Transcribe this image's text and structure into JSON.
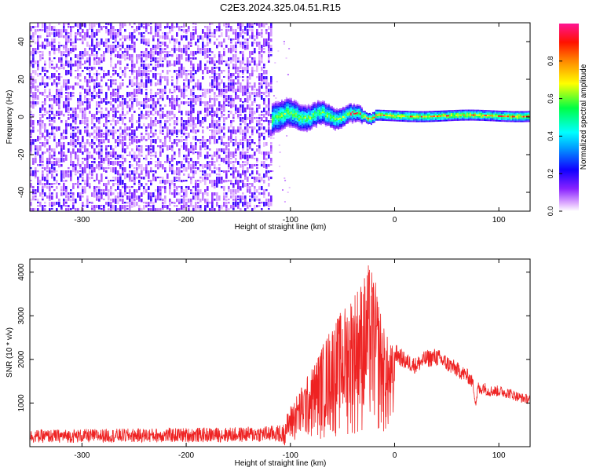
{
  "title": "C2E3.2024.325.04.51.R15",
  "colors": {
    "snr_line": "#ee2222",
    "colormap": [
      "#ffffff",
      "#b14cff",
      "#2200ff",
      "#00ffff",
      "#00ff00",
      "#ffff00",
      "#ff8800",
      "#ff0000",
      "#ff1493"
    ]
  },
  "chart_data": [
    {
      "type": "heatmap",
      "title": "",
      "xlabel": "Height of straight line (km)",
      "ylabel": "Frequency (Hz)",
      "xlim": [
        -350,
        130
      ],
      "ylim": [
        -50,
        50
      ],
      "xticks": [
        -300,
        -200,
        -100,
        0,
        100
      ],
      "yticks": [
        -40,
        -20,
        0,
        20,
        40
      ],
      "features": [
        {
          "x_range": [
            -350,
            -118
          ],
          "description_level": "noise",
          "amplitude": 0.08
        },
        {
          "x_range": [
            -118,
            130
          ],
          "center_frequency": 1,
          "amplitude_peak": 1.0
        }
      ],
      "colorbar": {
        "label": "Normalized spectral amplitude",
        "range": [
          0.0,
          1.0
        ],
        "ticks": [
          0.0,
          0.2,
          0.4,
          0.6,
          0.8
        ]
      }
    },
    {
      "type": "line",
      "title": "",
      "xlabel": "Height of straight line (km)",
      "ylabel": "SNR (10 * v/v)",
      "xlim": [
        -350,
        130
      ],
      "ylim": [
        0,
        4300
      ],
      "xticks": [
        -300,
        -200,
        -100,
        0,
        100
      ],
      "yticks": [
        1000,
        2000,
        3000,
        4000
      ],
      "series": [
        {
          "x": [
            -350,
            -300,
            -250,
            -200,
            -150,
            -110,
            -100,
            -80,
            -60,
            -50,
            -40,
            -30,
            -25,
            -20,
            -15,
            -10,
            -5,
            0,
            10,
            20,
            30,
            40,
            50,
            60,
            70,
            75,
            78,
            80,
            82,
            85,
            90,
            100,
            110,
            120,
            130
          ],
          "values": [
            250,
            260,
            270,
            280,
            290,
            320,
            900,
            1700,
            2700,
            3000,
            3400,
            3700,
            4000,
            3800,
            3200,
            2600,
            2300,
            2200,
            2000,
            1900,
            2050,
            2100,
            1950,
            1800,
            1650,
            1500,
            1000,
            1400,
            1300,
            1400,
            1300,
            1300,
            1250,
            1150,
            1100
          ]
        }
      ]
    }
  ],
  "ticklabels": {
    "x": [
      "-300",
      "-200",
      "-100",
      "0",
      "100"
    ],
    "y_top": [
      "-40",
      "-20",
      "0",
      "20",
      "40"
    ],
    "y_bottom": [
      "1000",
      "2000",
      "3000",
      "4000"
    ],
    "colorbar": [
      "0.0",
      "0.2",
      "0.4",
      "0.6",
      "0.8"
    ]
  }
}
